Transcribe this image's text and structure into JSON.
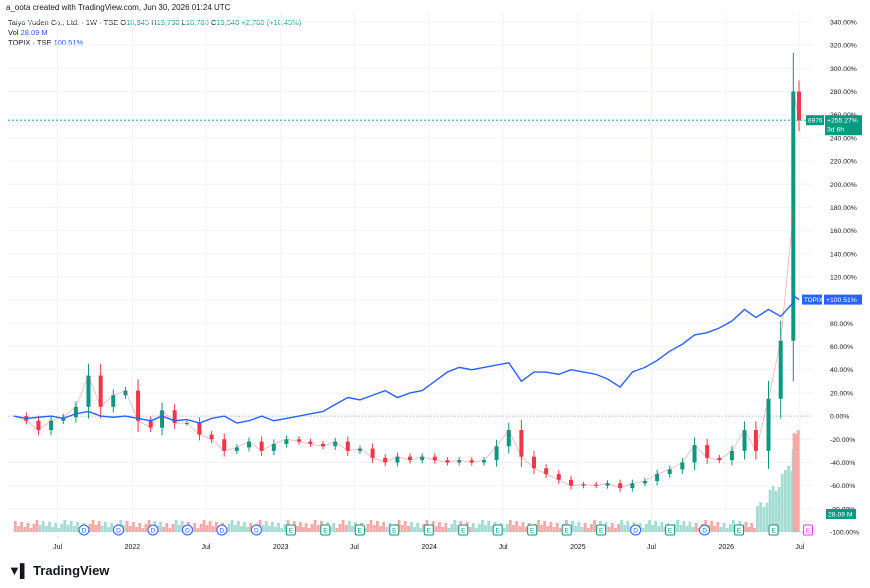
{
  "credit": "a_oota created with TradingView.com, Jun 30, 2026 01:24 UTC",
  "legend": {
    "symbol": "Taiyo Yuden Co., Ltd. · 1W · TSE",
    "o_label": "O",
    "o_value": "16,945",
    "h_label": "H",
    "h_value": "19,730",
    "l_label": "L",
    "l_value": "16,780",
    "c_label": "C",
    "c_value": "19,540",
    "change": "+2,760 (+16.45%)",
    "vol_label": "Vol",
    "vol_value": "28.09 M",
    "compare_label": "TOPIX · TSE",
    "compare_value": "100.51%"
  },
  "price_tag": {
    "symbol": "6976",
    "value": "+255.27%",
    "countdown": "3d 6h"
  },
  "compare_tag": {
    "symbol": "TOPIX",
    "value": "+100.51%"
  },
  "volume_tag": "28.09 M",
  "footer": {
    "brand": "TradingView"
  },
  "colors": {
    "up": "#089981",
    "down": "#f23645",
    "compare": "#2962ff",
    "vol_up": "#a5dcd3",
    "vol_down": "#f7a9a7",
    "zero_line": "#b2b5be",
    "dividend": "#2962ff",
    "earnings": "#089981"
  },
  "chart_data": {
    "type": "line",
    "title": "Taiyo Yuden Co., Ltd. · 1W · TSE",
    "y_axis": {
      "unit": "%",
      "range": [
        -100,
        340
      ],
      "ticks": [
        "340.00%",
        "320.00%",
        "300.00%",
        "280.00%",
        "260.00%",
        "240.00%",
        "220.00%",
        "200.00%",
        "180.00%",
        "160.00%",
        "140.00%",
        "120.00%",
        "100.00%",
        "80.00%",
        "60.00%",
        "40.00%",
        "20.00%",
        "0.00%",
        "-20.00%",
        "-40.00%",
        "-60.00%",
        "-80.00%",
        "-100.00%"
      ]
    },
    "x_axis": {
      "range": [
        "2021-03",
        "2026-07-31"
      ],
      "ticks": [
        {
          "label": "Jul",
          "date": "2021-07"
        },
        {
          "label": "2022",
          "date": "2022-01"
        },
        {
          "label": "Jul",
          "date": "2022-07"
        },
        {
          "label": "2023",
          "date": "2023-01"
        },
        {
          "label": "Jul",
          "date": "2023-07"
        },
        {
          "label": "2024",
          "date": "2024-01"
        },
        {
          "label": "Jul",
          "date": "2024-07"
        },
        {
          "label": "2025",
          "date": "2025-01"
        },
        {
          "label": "Jul",
          "date": "2025-07"
        },
        {
          "label": "2026",
          "date": "2026-01"
        },
        {
          "label": "Jul",
          "date": "2026-07"
        }
      ]
    },
    "grid": true,
    "series": [
      {
        "name": "Taiyo Yuden Co., Ltd.",
        "kind": "candles",
        "points": [
          [
            "2021-03",
            0
          ],
          [
            "2021-04",
            -4
          ],
          [
            "2021-05",
            -12
          ],
          [
            "2021-06",
            -4
          ],
          [
            "2021-07",
            -1
          ],
          [
            "2021-08",
            8
          ],
          [
            "2021-09",
            35
          ],
          [
            "2021-10",
            8
          ],
          [
            "2021-11",
            18
          ],
          [
            "2021-12",
            22
          ],
          [
            "2022-01",
            -4
          ],
          [
            "2022-02",
            -10
          ],
          [
            "2022-03",
            5
          ],
          [
            "2022-04",
            -6
          ],
          [
            "2022-05",
            -6
          ],
          [
            "2022-06",
            -16
          ],
          [
            "2022-07",
            -20
          ],
          [
            "2022-08",
            -30
          ],
          [
            "2022-09",
            -27
          ],
          [
            "2022-10",
            -22
          ],
          [
            "2022-11",
            -30
          ],
          [
            "2022-12",
            -24
          ],
          [
            "2023-01",
            -20
          ],
          [
            "2023-02",
            -22
          ],
          [
            "2023-03",
            -24
          ],
          [
            "2023-04",
            -26
          ],
          [
            "2023-05",
            -22
          ],
          [
            "2023-06",
            -30
          ],
          [
            "2023-07",
            -28
          ],
          [
            "2023-08",
            -36
          ],
          [
            "2023-09",
            -40
          ],
          [
            "2023-10",
            -35
          ],
          [
            "2023-11",
            -38
          ],
          [
            "2023-12",
            -35
          ],
          [
            "2024-01",
            -38
          ],
          [
            "2024-02",
            -40
          ],
          [
            "2024-03",
            -38
          ],
          [
            "2024-04",
            -40
          ],
          [
            "2024-05",
            -38
          ],
          [
            "2024-06",
            -26
          ],
          [
            "2024-07",
            -12
          ],
          [
            "2024-08",
            -35
          ],
          [
            "2024-09",
            -45
          ],
          [
            "2024-10",
            -50
          ],
          [
            "2024-11",
            -55
          ],
          [
            "2024-12",
            -60
          ],
          [
            "2025-01",
            -59
          ],
          [
            "2025-02",
            -60
          ],
          [
            "2025-03",
            -58
          ],
          [
            "2025-04",
            -62
          ],
          [
            "2025-05",
            -58
          ],
          [
            "2025-06",
            -56
          ],
          [
            "2025-07",
            -50
          ],
          [
            "2025-08",
            -46
          ],
          [
            "2025-09",
            -40
          ],
          [
            "2025-10",
            -25
          ],
          [
            "2025-11",
            -36
          ],
          [
            "2025-12",
            -38
          ],
          [
            "2026-01",
            -30
          ],
          [
            "2026-02",
            -12
          ],
          [
            "2026-03",
            -30
          ],
          [
            "2026-04",
            15
          ],
          [
            "2026-05",
            65
          ],
          [
            "2026-06",
            175
          ],
          [
            "2026-06-15",
            280
          ],
          [
            "2026-06-29",
            255.27
          ]
        ]
      },
      {
        "name": "TOPIX",
        "kind": "line",
        "points": [
          [
            "2021-03",
            0
          ],
          [
            "2021-04",
            -2
          ],
          [
            "2021-05",
            -1
          ],
          [
            "2021-06",
            0
          ],
          [
            "2021-07",
            -2
          ],
          [
            "2021-08",
            2
          ],
          [
            "2021-09",
            4
          ],
          [
            "2021-10",
            0
          ],
          [
            "2021-11",
            -1
          ],
          [
            "2021-12",
            0
          ],
          [
            "2022-01",
            -2
          ],
          [
            "2022-02",
            -4
          ],
          [
            "2022-03",
            0
          ],
          [
            "2022-04",
            -4
          ],
          [
            "2022-05",
            -3
          ],
          [
            "2022-06",
            -6
          ],
          [
            "2022-07",
            -2
          ],
          [
            "2022-08",
            0
          ],
          [
            "2022-09",
            -6
          ],
          [
            "2022-10",
            -4
          ],
          [
            "2022-11",
            0
          ],
          [
            "2022-12",
            -4
          ],
          [
            "2023-01",
            -2
          ],
          [
            "2023-02",
            0
          ],
          [
            "2023-03",
            2
          ],
          [
            "2023-04",
            4
          ],
          [
            "2023-05",
            10
          ],
          [
            "2023-06",
            16
          ],
          [
            "2023-07",
            14
          ],
          [
            "2023-08",
            18
          ],
          [
            "2023-09",
            22
          ],
          [
            "2023-10",
            16
          ],
          [
            "2023-11",
            20
          ],
          [
            "2023-12",
            22
          ],
          [
            "2024-01",
            30
          ],
          [
            "2024-02",
            38
          ],
          [
            "2024-03",
            42
          ],
          [
            "2024-04",
            40
          ],
          [
            "2024-05",
            42
          ],
          [
            "2024-06",
            44
          ],
          [
            "2024-07",
            46
          ],
          [
            "2024-08",
            30
          ],
          [
            "2024-09",
            38
          ],
          [
            "2024-10",
            38
          ],
          [
            "2024-11",
            36
          ],
          [
            "2024-12",
            40
          ],
          [
            "2025-01",
            38
          ],
          [
            "2025-02",
            36
          ],
          [
            "2025-03",
            32
          ],
          [
            "2025-04",
            25
          ],
          [
            "2025-05",
            38
          ],
          [
            "2025-06",
            42
          ],
          [
            "2025-07",
            48
          ],
          [
            "2025-08",
            56
          ],
          [
            "2025-09",
            62
          ],
          [
            "2025-10",
            70
          ],
          [
            "2025-11",
            72
          ],
          [
            "2025-12",
            76
          ],
          [
            "2026-01",
            82
          ],
          [
            "2026-02",
            92
          ],
          [
            "2026-03",
            85
          ],
          [
            "2026-04",
            92
          ],
          [
            "2026-05",
            86
          ],
          [
            "2026-06",
            98
          ],
          [
            "2026-06-15",
            104
          ],
          [
            "2026-06-29",
            100.51
          ]
        ]
      }
    ],
    "events": [
      "D",
      "D",
      "D",
      "D",
      "D",
      "D",
      "E",
      "E",
      "E",
      "E",
      "E",
      "E",
      "E",
      "E",
      "E",
      "E",
      "D",
      "E",
      "D",
      "E",
      "E",
      "E"
    ]
  }
}
